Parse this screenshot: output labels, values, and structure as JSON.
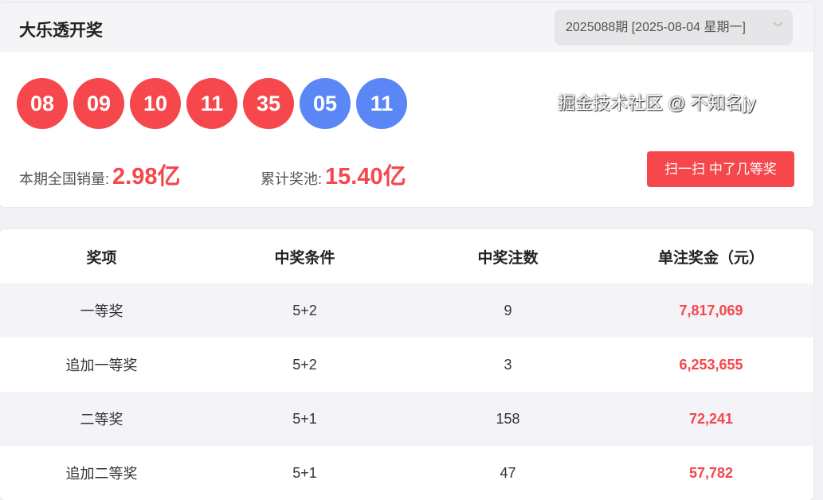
{
  "header": {
    "title": "大乐透开奖",
    "issue_select": "2025088期 [2025-08-04 星期一]"
  },
  "balls": {
    "front": [
      "08",
      "09",
      "10",
      "11",
      "35"
    ],
    "back": [
      "05",
      "11"
    ],
    "front_color": "#f5474c",
    "back_color": "#5b86f5"
  },
  "stats": {
    "sales_label": "本期全国销量:",
    "sales_value": "2.98亿",
    "pool_label": "累计奖池:",
    "pool_value": "15.40亿"
  },
  "scan_button": "扫一扫 中了几等奖",
  "table": {
    "headers": [
      "奖项",
      "中奖条件",
      "中奖注数",
      "单注奖金（元）"
    ],
    "rows": [
      [
        "一等奖",
        "5+2",
        "9",
        "7,817,069"
      ],
      [
        "追加一等奖",
        "5+2",
        "3",
        "6,253,655"
      ],
      [
        "二等奖",
        "5+1",
        "158",
        "72,241"
      ],
      [
        "追加二等奖",
        "5+1",
        "47",
        "57,782"
      ]
    ]
  },
  "watermark": "掘金技术社区 @ 不知名jy"
}
